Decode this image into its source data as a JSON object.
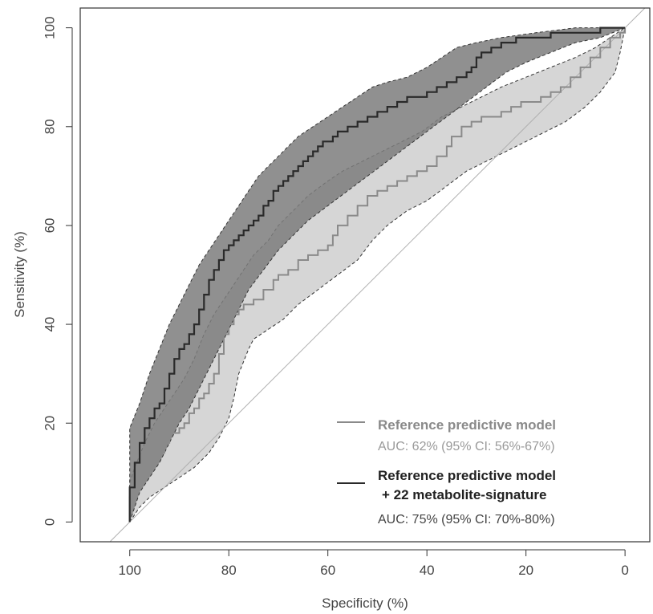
{
  "chart_data": {
    "type": "line",
    "title": "",
    "xlabel": "Specificity (%)",
    "ylabel": "Sensitivity (%)",
    "xlim": [
      110,
      -5
    ],
    "ylim": [
      -4,
      104
    ],
    "x_reversed": true,
    "xticks": [
      100,
      80,
      60,
      40,
      20,
      0
    ],
    "yticks": [
      0,
      20,
      40,
      60,
      80,
      100
    ],
    "grid": false,
    "legend_position": "bottom-right",
    "diagonal_reference_line": true,
    "series": [
      {
        "name": "Reference predictive model",
        "legend_lines": [
          "Reference predictive model"
        ],
        "auc_label": "AUC: 62% (95% CI: 56%-67%)",
        "color": "#8a8a8a",
        "band_color": "#d6d6d6",
        "points": [
          [
            100,
            0
          ],
          [
            100,
            5
          ],
          [
            99,
            8
          ],
          [
            98,
            10
          ],
          [
            96,
            12
          ],
          [
            95,
            14
          ],
          [
            93,
            16
          ],
          [
            92,
            18
          ],
          [
            90,
            19
          ],
          [
            89,
            20
          ],
          [
            88,
            22
          ],
          [
            87,
            23
          ],
          [
            86,
            25
          ],
          [
            85,
            26
          ],
          [
            84,
            28
          ],
          [
            83,
            30
          ],
          [
            82,
            34
          ],
          [
            81,
            38
          ],
          [
            80,
            40
          ],
          [
            79,
            42
          ],
          [
            78,
            43
          ],
          [
            77,
            44
          ],
          [
            75,
            45
          ],
          [
            73,
            47
          ],
          [
            71,
            49
          ],
          [
            70,
            50
          ],
          [
            68,
            51
          ],
          [
            66,
            53
          ],
          [
            64,
            54
          ],
          [
            62,
            55
          ],
          [
            60,
            56
          ],
          [
            59,
            58
          ],
          [
            58,
            60
          ],
          [
            56,
            62
          ],
          [
            54,
            64
          ],
          [
            52,
            66
          ],
          [
            50,
            67
          ],
          [
            48,
            68
          ],
          [
            46,
            69
          ],
          [
            44,
            70
          ],
          [
            42,
            71
          ],
          [
            40,
            72
          ],
          [
            38,
            74
          ],
          [
            36,
            76
          ],
          [
            35,
            78
          ],
          [
            33,
            80
          ],
          [
            31,
            81
          ],
          [
            29,
            82
          ],
          [
            27,
            82
          ],
          [
            25,
            83
          ],
          [
            23,
            84
          ],
          [
            21,
            85
          ],
          [
            19,
            85
          ],
          [
            17,
            86
          ],
          [
            15,
            87
          ],
          [
            13,
            88
          ],
          [
            11,
            90
          ],
          [
            9,
            92
          ],
          [
            7,
            94
          ],
          [
            5,
            96
          ],
          [
            3,
            98
          ],
          [
            1,
            99
          ],
          [
            0,
            100
          ]
        ],
        "ci_upper": [
          [
            100,
            0
          ],
          [
            100,
            8
          ],
          [
            99,
            11
          ],
          [
            97,
            16
          ],
          [
            95,
            20
          ],
          [
            93,
            23
          ],
          [
            91,
            26
          ],
          [
            89,
            29
          ],
          [
            87,
            33
          ],
          [
            85,
            38
          ],
          [
            83,
            42
          ],
          [
            81,
            45
          ],
          [
            79,
            48
          ],
          [
            77,
            51
          ],
          [
            75,
            54
          ],
          [
            72,
            57
          ],
          [
            70,
            60
          ],
          [
            67,
            63
          ],
          [
            64,
            66
          ],
          [
            60,
            69
          ],
          [
            57,
            71
          ],
          [
            53,
            73
          ],
          [
            49,
            75
          ],
          [
            45,
            77
          ],
          [
            41,
            79
          ],
          [
            37,
            82
          ],
          [
            33,
            84
          ],
          [
            29,
            86
          ],
          [
            25,
            88
          ],
          [
            20,
            90
          ],
          [
            15,
            92
          ],
          [
            10,
            94
          ],
          [
            6,
            96
          ],
          [
            3,
            98
          ],
          [
            0,
            100
          ]
        ],
        "ci_lower": [
          [
            100,
            0
          ],
          [
            98,
            3
          ],
          [
            96,
            5
          ],
          [
            93,
            7
          ],
          [
            90,
            9
          ],
          [
            87,
            11
          ],
          [
            84,
            14
          ],
          [
            82,
            17
          ],
          [
            80,
            21
          ],
          [
            79,
            25
          ],
          [
            78,
            30
          ],
          [
            76,
            35
          ],
          [
            75,
            37
          ],
          [
            72,
            39
          ],
          [
            69,
            41
          ],
          [
            66,
            44
          ],
          [
            62,
            47
          ],
          [
            58,
            50
          ],
          [
            54,
            53
          ],
          [
            51,
            57
          ],
          [
            48,
            60
          ],
          [
            44,
            63
          ],
          [
            40,
            65
          ],
          [
            36,
            68
          ],
          [
            32,
            71
          ],
          [
            28,
            73
          ],
          [
            24,
            75
          ],
          [
            20,
            77
          ],
          [
            16,
            79
          ],
          [
            12,
            81
          ],
          [
            8,
            84
          ],
          [
            5,
            87
          ],
          [
            2,
            91
          ],
          [
            1,
            95
          ],
          [
            0,
            100
          ]
        ]
      },
      {
        "name": "Reference predictive model + 22 metabolite-signature",
        "legend_lines": [
          "Reference predictive model",
          "+ 22 metabolite-signature"
        ],
        "auc_label": "AUC: 75% (95% CI: 70%-80%)",
        "color": "#2a2a2a",
        "band_color": "#7d7d7d",
        "points": [
          [
            100,
            0
          ],
          [
            100,
            7
          ],
          [
            99,
            12
          ],
          [
            98,
            16
          ],
          [
            97,
            19
          ],
          [
            96,
            21
          ],
          [
            95,
            23
          ],
          [
            94,
            24
          ],
          [
            93,
            27
          ],
          [
            92,
            30
          ],
          [
            91,
            33
          ],
          [
            90,
            35
          ],
          [
            89,
            36
          ],
          [
            88,
            38
          ],
          [
            87,
            40
          ],
          [
            86,
            43
          ],
          [
            85,
            46
          ],
          [
            84,
            49
          ],
          [
            83,
            51
          ],
          [
            82,
            53
          ],
          [
            81,
            55
          ],
          [
            80,
            56
          ],
          [
            79,
            57
          ],
          [
            78,
            58
          ],
          [
            77,
            59
          ],
          [
            76,
            60
          ],
          [
            75,
            61
          ],
          [
            74,
            62
          ],
          [
            73,
            64
          ],
          [
            72,
            65
          ],
          [
            71,
            67
          ],
          [
            70,
            68
          ],
          [
            69,
            69
          ],
          [
            68,
            70
          ],
          [
            67,
            71
          ],
          [
            66,
            72
          ],
          [
            65,
            73
          ],
          [
            64,
            74
          ],
          [
            63,
            75
          ],
          [
            62,
            76
          ],
          [
            61,
            77
          ],
          [
            60,
            77
          ],
          [
            59,
            78
          ],
          [
            58,
            79
          ],
          [
            56,
            80
          ],
          [
            54,
            81
          ],
          [
            52,
            82
          ],
          [
            50,
            83
          ],
          [
            48,
            84
          ],
          [
            46,
            85
          ],
          [
            44,
            86
          ],
          [
            42,
            86
          ],
          [
            40,
            87
          ],
          [
            38,
            88
          ],
          [
            36,
            89
          ],
          [
            34,
            90
          ],
          [
            32,
            91
          ],
          [
            31,
            92
          ],
          [
            30,
            94
          ],
          [
            29,
            95
          ],
          [
            27,
            96
          ],
          [
            25,
            97
          ],
          [
            22,
            98
          ],
          [
            19,
            98
          ],
          [
            15,
            99
          ],
          [
            10,
            99
          ],
          [
            5,
            100
          ],
          [
            0,
            100
          ]
        ],
        "ci_upper": [
          [
            100,
            0
          ],
          [
            100,
            19
          ],
          [
            98,
            24
          ],
          [
            96,
            30
          ],
          [
            94,
            35
          ],
          [
            92,
            40
          ],
          [
            90,
            44
          ],
          [
            88,
            48
          ],
          [
            86,
            52
          ],
          [
            84,
            55
          ],
          [
            82,
            58
          ],
          [
            80,
            61
          ],
          [
            78,
            64
          ],
          [
            76,
            67
          ],
          [
            74,
            70
          ],
          [
            72,
            72
          ],
          [
            70,
            74
          ],
          [
            68,
            76
          ],
          [
            66,
            78
          ],
          [
            63,
            80
          ],
          [
            60,
            82
          ],
          [
            57,
            84
          ],
          [
            54,
            86
          ],
          [
            51,
            88
          ],
          [
            48,
            89
          ],
          [
            44,
            90
          ],
          [
            40,
            92
          ],
          [
            37,
            94
          ],
          [
            34,
            96
          ],
          [
            30,
            97
          ],
          [
            25,
            98
          ],
          [
            18,
            99
          ],
          [
            10,
            100
          ],
          [
            0,
            100
          ]
        ],
        "ci_lower": [
          [
            100,
            0
          ],
          [
            99,
            3
          ],
          [
            98,
            6
          ],
          [
            96,
            9
          ],
          [
            94,
            12
          ],
          [
            92,
            16
          ],
          [
            90,
            20
          ],
          [
            88,
            23
          ],
          [
            86,
            27
          ],
          [
            84,
            31
          ],
          [
            82,
            35
          ],
          [
            80,
            39
          ],
          [
            78,
            43
          ],
          [
            76,
            47
          ],
          [
            73,
            51
          ],
          [
            70,
            55
          ],
          [
            67,
            58
          ],
          [
            64,
            61
          ],
          [
            60,
            64
          ],
          [
            56,
            67
          ],
          [
            52,
            70
          ],
          [
            48,
            73
          ],
          [
            44,
            76
          ],
          [
            40,
            79
          ],
          [
            36,
            82
          ],
          [
            32,
            85
          ],
          [
            28,
            88
          ],
          [
            24,
            91
          ],
          [
            20,
            93
          ],
          [
            15,
            95
          ],
          [
            10,
            97
          ],
          [
            5,
            98
          ],
          [
            0,
            100
          ]
        ]
      }
    ]
  }
}
